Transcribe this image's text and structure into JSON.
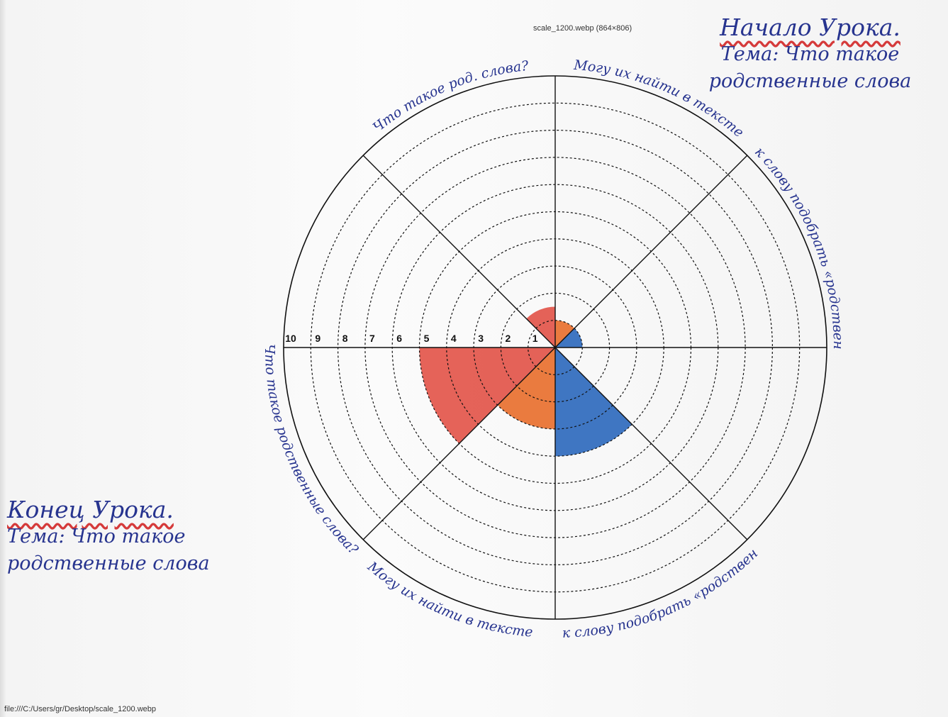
{
  "header": {
    "image_info": "scale_1200.webp (864×806)"
  },
  "footer": {
    "path": "file:///C:/Users/gr/Desktop/scale_1200.webp"
  },
  "notes": [
    {
      "title": "Начало Урока.",
      "topic": "Тема: Что такое родственные слова"
    },
    {
      "title": "Конец Урока.",
      "topic": "Тема: Что такое родственные слова"
    }
  ],
  "chart_data": {
    "type": "polar",
    "categories": [
      "Могу их найти в тексте",
      "Могу к слову подобрать «родственные»",
      null,
      "Могу к слову подобрать «родственные»",
      "Могу их найти в тексте",
      "Что такое родственные слова?",
      null,
      "Что такое род. слова?"
    ],
    "values": [
      1,
      1,
      null,
      4,
      3,
      5,
      null,
      1.5
    ],
    "colors": [
      "#e8651e",
      "#1f5fb8",
      null,
      "#1f5fb8",
      "#e8651e",
      "#e0483c",
      null,
      "#e0483c"
    ],
    "rlim": [
      0,
      10
    ],
    "rticks": [
      1,
      2,
      3,
      4,
      5,
      6,
      7,
      8,
      9,
      10
    ]
  }
}
